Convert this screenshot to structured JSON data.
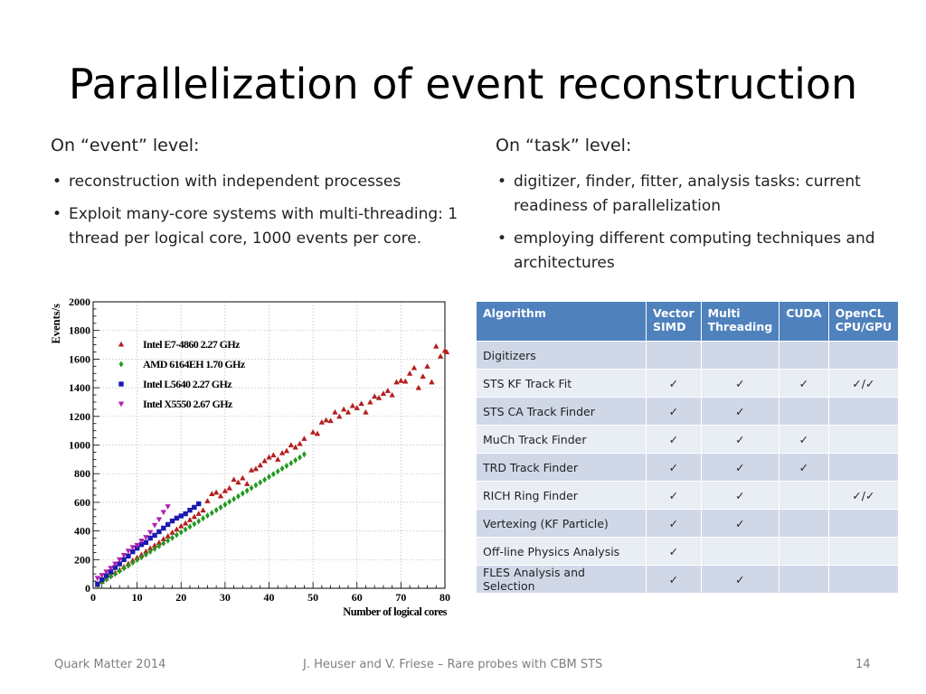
{
  "slide": {
    "title": "Parallelization of event reconstruction",
    "left": {
      "heading": "On “event” level:",
      "bullets": [
        "reconstruction with independent processes",
        "Exploit many-core systems with multi-threading: 1 thread per logical core, 1000 events per core."
      ]
    },
    "right": {
      "heading": "On “task” level:",
      "bullets": [
        "digitizer, finder, fitter, analysis tasks: current readiness of parallelization",
        "employing different computing techniques and architectures"
      ]
    },
    "footer": {
      "left": "Quark Matter 2014",
      "center": "J. Heuser and V. Friese – Rare probes with CBM STS",
      "page": "14"
    }
  },
  "table": {
    "headers": [
      "Algorithm",
      "Vector SIMD",
      "Multi Threading",
      "CUDA",
      "OpenCL CPU/GPU"
    ],
    "rows": [
      [
        "Digitizers",
        "",
        "",
        "",
        ""
      ],
      [
        "STS KF Track Fit",
        "✓",
        "✓",
        "✓",
        "✓/✓"
      ],
      [
        "STS CA Track Finder",
        "✓",
        "✓",
        "",
        ""
      ],
      [
        "MuCh Track Finder",
        "✓",
        "✓",
        "✓",
        ""
      ],
      [
        "TRD Track Finder",
        "✓",
        "✓",
        "✓",
        ""
      ],
      [
        "RICH Ring Finder",
        "✓",
        "✓",
        "",
        "✓/✓"
      ],
      [
        "Vertexing (KF Particle)",
        "✓",
        "✓",
        "",
        ""
      ],
      [
        "Off-line Physics Analysis",
        "✓",
        "",
        "",
        ""
      ],
      [
        "FLES Analysis and Selection",
        "✓",
        "✓",
        "",
        ""
      ]
    ]
  },
  "chart_data": {
    "type": "scatter",
    "xlabel": "Number of logical cores",
    "ylabel": "Events/s",
    "xlim": [
      0,
      80
    ],
    "ylim": [
      0,
      2000
    ],
    "xticks": [
      0,
      10,
      20,
      30,
      40,
      50,
      60,
      70,
      80
    ],
    "yticks": [
      0,
      200,
      400,
      600,
      800,
      1000,
      1200,
      1400,
      1600,
      1800,
      2000
    ],
    "grid": true,
    "legend_position": "top-left",
    "series": [
      {
        "name": "Intel E7-4860 2.27 GHz",
        "marker": "triangle-up",
        "color": "#b41e1e",
        "points": [
          [
            1,
            25
          ],
          [
            2,
            48
          ],
          [
            3,
            70
          ],
          [
            4,
            92
          ],
          [
            5,
            110
          ],
          [
            6,
            130
          ],
          [
            7,
            150
          ],
          [
            8,
            172
          ],
          [
            9,
            195
          ],
          [
            10,
            215
          ],
          [
            11,
            235
          ],
          [
            12,
            258
          ],
          [
            13,
            280
          ],
          [
            14,
            300
          ],
          [
            15,
            320
          ],
          [
            16,
            345
          ],
          [
            17,
            365
          ],
          [
            18,
            390
          ],
          [
            19,
            412
          ],
          [
            20,
            435
          ],
          [
            21,
            455
          ],
          [
            22,
            478
          ],
          [
            23,
            500
          ],
          [
            24,
            522
          ],
          [
            25,
            545
          ],
          [
            26,
            610
          ],
          [
            27,
            660
          ],
          [
            28,
            670
          ],
          [
            29,
            645
          ],
          [
            30,
            680
          ],
          [
            31,
            700
          ],
          [
            32,
            760
          ],
          [
            33,
            740
          ],
          [
            34,
            770
          ],
          [
            35,
            730
          ],
          [
            36,
            825
          ],
          [
            37,
            835
          ],
          [
            38,
            860
          ],
          [
            39,
            890
          ],
          [
            40,
            915
          ],
          [
            41,
            930
          ],
          [
            42,
            900
          ],
          [
            43,
            945
          ],
          [
            44,
            960
          ],
          [
            45,
            1000
          ],
          [
            46,
            985
          ],
          [
            47,
            1010
          ],
          [
            48,
            1045
          ],
          [
            50,
            1090
          ],
          [
            51,
            1080
          ],
          [
            52,
            1160
          ],
          [
            53,
            1175
          ],
          [
            54,
            1170
          ],
          [
            55,
            1230
          ],
          [
            56,
            1200
          ],
          [
            57,
            1250
          ],
          [
            58,
            1230
          ],
          [
            59,
            1275
          ],
          [
            60,
            1260
          ],
          [
            61,
            1290
          ],
          [
            62,
            1230
          ],
          [
            63,
            1300
          ],
          [
            64,
            1340
          ],
          [
            65,
            1330
          ],
          [
            66,
            1360
          ],
          [
            67,
            1380
          ],
          [
            68,
            1350
          ],
          [
            69,
            1440
          ],
          [
            70,
            1450
          ],
          [
            71,
            1445
          ],
          [
            72,
            1500
          ],
          [
            73,
            1540
          ],
          [
            74,
            1400
          ],
          [
            75,
            1480
          ],
          [
            76,
            1550
          ],
          [
            77,
            1440
          ],
          [
            78,
            1690
          ],
          [
            79,
            1620
          ],
          [
            80,
            1660
          ],
          [
            81,
            1650
          ]
        ]
      },
      {
        "name": "AMD 6164EH  1.70 GHz",
        "marker": "diamond",
        "color": "#1f9a1f",
        "points": [
          [
            1,
            22
          ],
          [
            2,
            42
          ],
          [
            3,
            62
          ],
          [
            4,
            82
          ],
          [
            5,
            100
          ],
          [
            6,
            120
          ],
          [
            7,
            140
          ],
          [
            8,
            158
          ],
          [
            9,
            178
          ],
          [
            10,
            198
          ],
          [
            11,
            216
          ],
          [
            12,
            236
          ],
          [
            13,
            256
          ],
          [
            14,
            275
          ],
          [
            15,
            294
          ],
          [
            16,
            314
          ],
          [
            17,
            333
          ],
          [
            18,
            352
          ],
          [
            19,
            372
          ],
          [
            20,
            391
          ],
          [
            21,
            410
          ],
          [
            22,
            430
          ],
          [
            23,
            449
          ],
          [
            24,
            468
          ],
          [
            25,
            488
          ],
          [
            26,
            507
          ],
          [
            27,
            526
          ],
          [
            28,
            546
          ],
          [
            29,
            565
          ],
          [
            30,
            584
          ],
          [
            31,
            604
          ],
          [
            32,
            623
          ],
          [
            33,
            642
          ],
          [
            34,
            662
          ],
          [
            35,
            681
          ],
          [
            36,
            700
          ],
          [
            37,
            720
          ],
          [
            38,
            739
          ],
          [
            39,
            758
          ],
          [
            40,
            778
          ],
          [
            41,
            797
          ],
          [
            42,
            816
          ],
          [
            43,
            836
          ],
          [
            44,
            855
          ],
          [
            45,
            874
          ],
          [
            46,
            894
          ],
          [
            47,
            913
          ],
          [
            48,
            935
          ]
        ]
      },
      {
        "name": "Intel L5640   2.27 GHz",
        "marker": "square",
        "color": "#1a1ab0",
        "points": [
          [
            1,
            30
          ],
          [
            2,
            60
          ],
          [
            3,
            88
          ],
          [
            4,
            115
          ],
          [
            5,
            145
          ],
          [
            6,
            170
          ],
          [
            7,
            200
          ],
          [
            8,
            225
          ],
          [
            9,
            255
          ],
          [
            10,
            280
          ],
          [
            11,
            305
          ],
          [
            12,
            320
          ],
          [
            13,
            350
          ],
          [
            14,
            370
          ],
          [
            15,
            395
          ],
          [
            16,
            420
          ],
          [
            17,
            445
          ],
          [
            18,
            470
          ],
          [
            19,
            490
          ],
          [
            20,
            505
          ],
          [
            21,
            520
          ],
          [
            22,
            545
          ],
          [
            23,
            565
          ],
          [
            24,
            590
          ]
        ]
      },
      {
        "name": "Intel X5550   2.67 GHz",
        "marker": "triangle-down",
        "color": "#b020b0",
        "points": [
          [
            1,
            70
          ],
          [
            2,
            90
          ],
          [
            3,
            115
          ],
          [
            4,
            140
          ],
          [
            5,
            170
          ],
          [
            6,
            200
          ],
          [
            7,
            230
          ],
          [
            8,
            260
          ],
          [
            9,
            285
          ],
          [
            10,
            300
          ],
          [
            11,
            330
          ],
          [
            12,
            355
          ],
          [
            13,
            390
          ],
          [
            14,
            440
          ],
          [
            15,
            480
          ],
          [
            16,
            530
          ],
          [
            17,
            570
          ]
        ]
      }
    ]
  }
}
